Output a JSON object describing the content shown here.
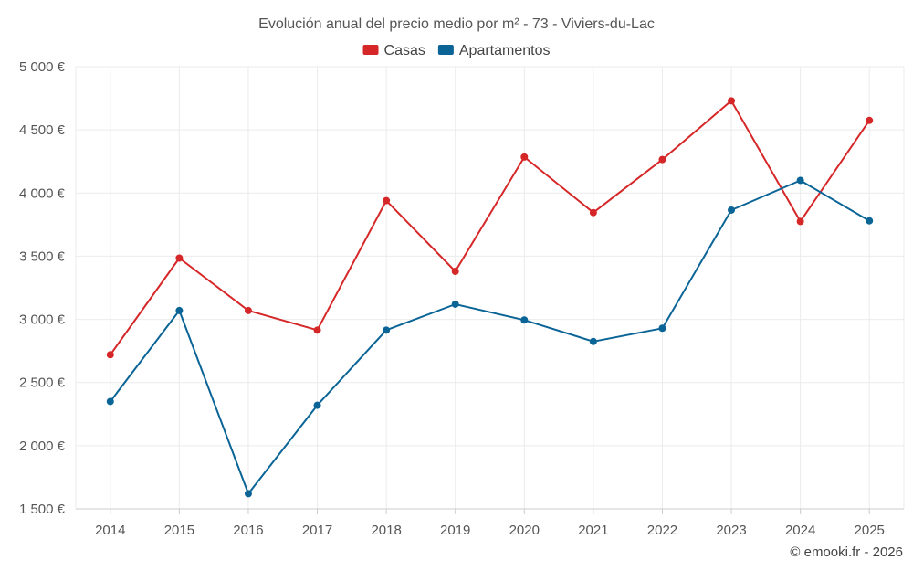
{
  "chart_data": {
    "type": "line",
    "title": "Evolución anual del precio medio por m² - 73 - Viviers-du-Lac",
    "categories": [
      "2014",
      "2015",
      "2016",
      "2017",
      "2018",
      "2019",
      "2020",
      "2021",
      "2022",
      "2023",
      "2024",
      "2025"
    ],
    "series": [
      {
        "name": "Casas",
        "color": "#d62728",
        "values": [
          2720,
          3485,
          3070,
          2915,
          3940,
          3380,
          4285,
          3845,
          4265,
          4730,
          3775,
          4575
        ]
      },
      {
        "name": "Apartamentos",
        "color": "#0a6496",
        "values": [
          2350,
          3070,
          1620,
          2320,
          2915,
          3120,
          2995,
          2825,
          2930,
          3865,
          4100,
          3780
        ]
      }
    ],
    "ylim": [
      1500,
      5000
    ],
    "yticks": [
      1500,
      2000,
      2500,
      3000,
      3500,
      4000,
      4500,
      5000
    ],
    "ytick_labels": [
      "1 500 €",
      "2 000 €",
      "2 500 €",
      "3 000 €",
      "3 500 €",
      "4 000 €",
      "4 500 €",
      "5 000 €"
    ],
    "grid": true,
    "legend_position": "top-center",
    "xlabel": "",
    "ylabel": ""
  },
  "credit": "© emooki.fr - 2026"
}
